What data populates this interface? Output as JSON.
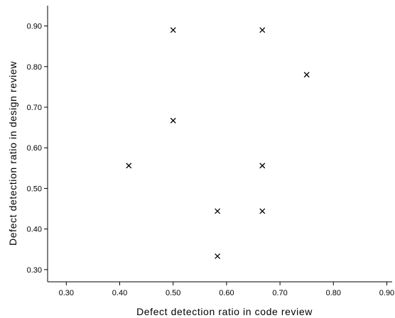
{
  "chart_data": {
    "type": "scatter",
    "title": "",
    "xlabel": "Defect detection ratio in code review",
    "ylabel": "Defect detection ratio in design  review",
    "xlim": [
      0.265,
      0.91
    ],
    "ylim": [
      0.27,
      0.95
    ],
    "xticks": [
      "0.30",
      "0.40",
      "0.50",
      "0.60",
      "0.70",
      "0.80",
      "0.90"
    ],
    "yticks": [
      "0.30",
      "0.40",
      "0.50",
      "0.60",
      "0.70",
      "0.80",
      "0.90"
    ],
    "grid": false,
    "marker": "x",
    "points": [
      {
        "x": 0.5,
        "y": 0.89
      },
      {
        "x": 0.667,
        "y": 0.89
      },
      {
        "x": 0.75,
        "y": 0.78
      },
      {
        "x": 0.5,
        "y": 0.667
      },
      {
        "x": 0.417,
        "y": 0.556
      },
      {
        "x": 0.667,
        "y": 0.556
      },
      {
        "x": 0.583,
        "y": 0.444
      },
      {
        "x": 0.667,
        "y": 0.444
      },
      {
        "x": 0.583,
        "y": 0.333
      }
    ],
    "colors": {
      "marker": "#000000",
      "axis": "#000000"
    }
  }
}
